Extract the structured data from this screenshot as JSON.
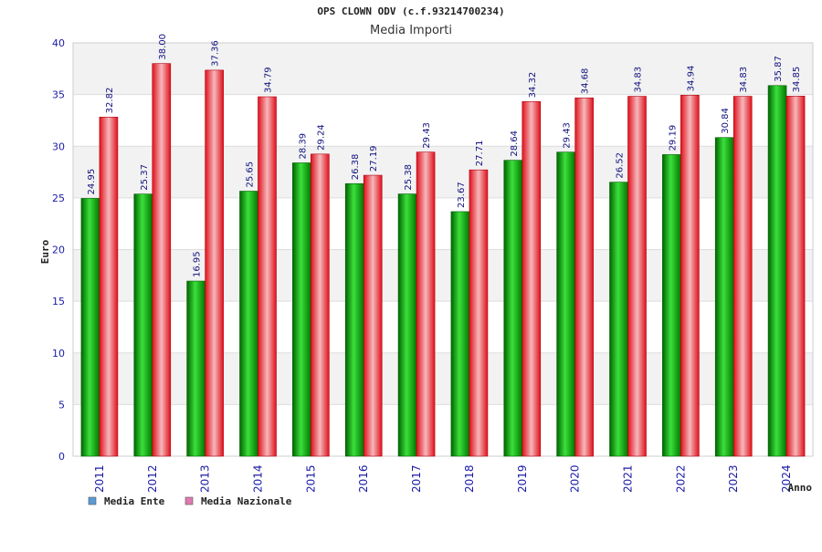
{
  "chart_data": {
    "type": "bar",
    "title": "OPS CLOWN ODV (c.f.93214700234)",
    "subtitle": "Media Importi",
    "xlabel": "Anno",
    "ylabel": "Euro",
    "ylim": [
      0,
      40
    ],
    "yticks": [
      0,
      5,
      10,
      15,
      20,
      25,
      30,
      35,
      40
    ],
    "grid": true,
    "legend_position": "bottom-left",
    "categories": [
      "2011",
      "2012",
      "2013",
      "2014",
      "2015",
      "2016",
      "2017",
      "2018",
      "2019",
      "2020",
      "2021",
      "2022",
      "2023",
      "2024"
    ],
    "series": [
      {
        "name": "Media Ente",
        "color": "#00aa00",
        "legend_color": "#5b9bd5",
        "values": [
          24.95,
          25.37,
          16.95,
          25.65,
          28.39,
          26.38,
          25.38,
          23.67,
          28.64,
          29.43,
          26.52,
          29.19,
          30.84,
          35.87
        ],
        "labels": [
          "24.95",
          "25.37",
          "16.95",
          "25.65",
          "28.39",
          "26.38",
          "25.38",
          "23.67",
          "28.64",
          "29.43",
          "26.52",
          "29.19",
          "30.84",
          "35.87"
        ]
      },
      {
        "name": "Media Nazionale",
        "color": "#e8202a",
        "legend_color": "#e07ab0",
        "values": [
          32.82,
          38.0,
          37.36,
          34.79,
          29.24,
          27.19,
          29.43,
          27.71,
          34.32,
          34.68,
          34.83,
          34.94,
          34.83,
          34.85
        ],
        "labels": [
          "32.82",
          "38.00",
          "37.36",
          "34.79",
          "29.24",
          "27.19",
          "29.43",
          "27.71",
          "34.32",
          "34.68",
          "34.83",
          "34.94",
          "34.83",
          "34.85"
        ]
      }
    ]
  }
}
